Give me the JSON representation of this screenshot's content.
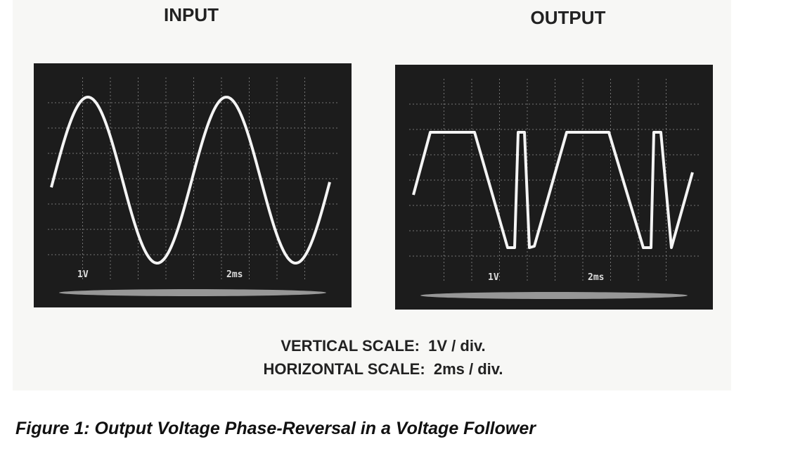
{
  "panels": [
    {
      "title": "INPUT",
      "scope_labels": [
        "1V",
        "2ms"
      ]
    },
    {
      "title": "OUTPUT",
      "scope_labels": [
        "1V",
        "2ms"
      ]
    }
  ],
  "scale_notes": [
    "VERTICAL SCALE:  1V / div.",
    "HORIZONTAL SCALE:  2ms / div."
  ],
  "caption": "Figure 1: Output Voltage Phase-Reversal in a Voltage Follower"
}
